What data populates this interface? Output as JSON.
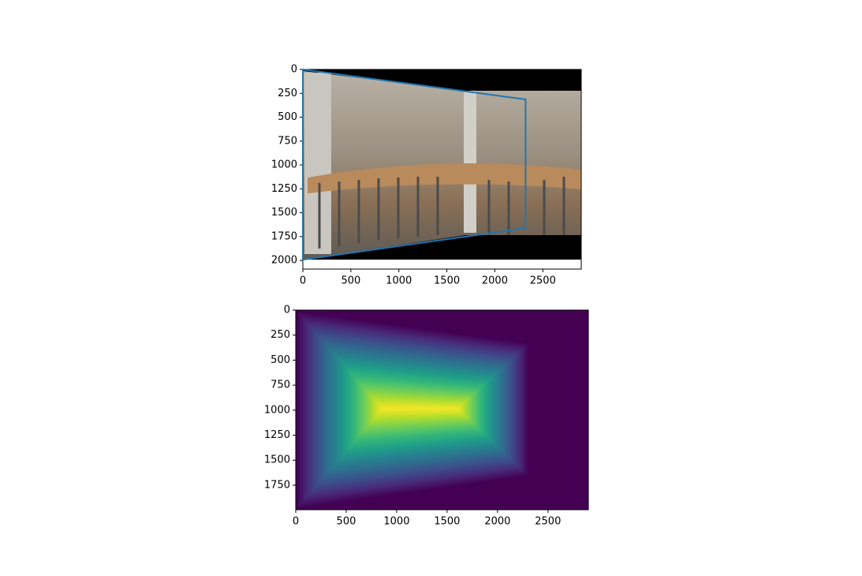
{
  "chart_data": [
    {
      "type": "image",
      "xlim": [
        0,
        2900
      ],
      "ylim": [
        2090,
        0
      ],
      "xticks": [
        0,
        500,
        1000,
        1500,
        2000,
        2500
      ],
      "yticks": [
        0,
        250,
        500,
        750,
        1000,
        1250,
        1500,
        1750,
        2000
      ],
      "series": [
        {
          "color": "#1f77b4",
          "x": [
            0,
            2320,
            2320,
            0,
            0
          ],
          "values": [
            0,
            314,
            1661,
            1992,
            0
          ]
        }
      ]
    },
    {
      "type": "heatmap",
      "xlim": [
        0,
        2900
      ],
      "ylim": [
        1995,
        0
      ],
      "xticks": [
        0,
        500,
        1000,
        1500,
        2000,
        2500
      ],
      "yticks": [
        0,
        250,
        500,
        750,
        1000,
        1250,
        1500,
        1750
      ]
    }
  ]
}
